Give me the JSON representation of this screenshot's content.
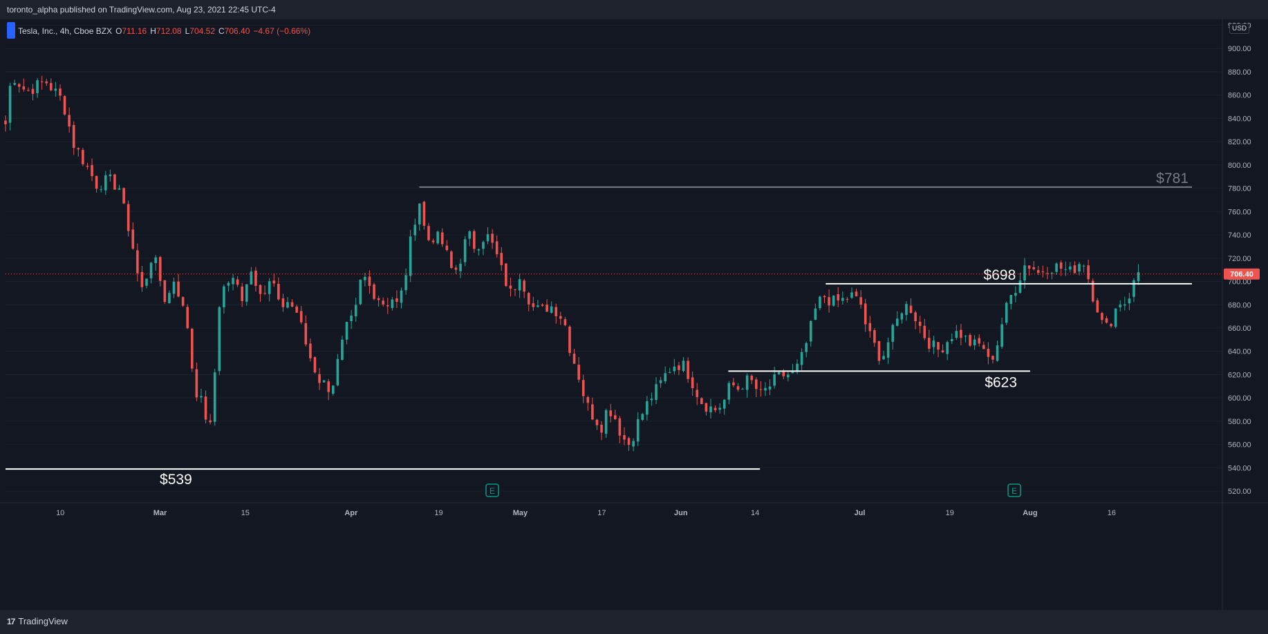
{
  "header": {
    "published_text": "toronto_alpha published on TradingView.com, Aug 23, 2021 22:45 UTC-4"
  },
  "legend": {
    "symbol": "Tesla, Inc., 4h, Cboe BZX",
    "open_label": "O",
    "open": "711.16",
    "high_label": "H",
    "high": "712.08",
    "low_label": "L",
    "low": "704.52",
    "close_label": "C",
    "close": "706.40",
    "change": "−4.67 (−0.66%)"
  },
  "price_axis": {
    "currency": "USD",
    "last_price": "706.40"
  },
  "footer": {
    "brand": "TradingView",
    "logo_glyph": "17"
  },
  "colors": {
    "up": "#26a69a",
    "down": "#ef5350",
    "background": "#131722",
    "grid": "#1e222d",
    "axis_text": "#b2b5be",
    "level_line": "#ffffff",
    "level_781": "#787b86"
  },
  "chart_data": {
    "type": "candlestick",
    "ylim": [
      510,
      925
    ],
    "y_ticks": [
      520,
      540,
      560,
      580,
      600,
      620,
      640,
      660,
      680,
      700,
      720,
      740,
      760,
      780,
      800,
      820,
      840,
      860,
      880,
      900,
      920
    ],
    "x_ticks": [
      "10",
      "Mar",
      "15",
      "Apr",
      "19",
      "May",
      "17",
      "Jun",
      "14",
      "Jul",
      "19",
      "Aug",
      "16"
    ],
    "x_tick_positions": [
      0.045,
      0.127,
      0.197,
      0.284,
      0.356,
      0.423,
      0.49,
      0.555,
      0.616,
      0.702,
      0.776,
      0.842,
      0.909
    ],
    "annotations": [
      {
        "label": "$781",
        "value": 781,
        "color": "#787b86",
        "from": 0.34,
        "to": 0.975
      },
      {
        "label": "$698",
        "value": 698,
        "color": "#ffffff",
        "from": 0.674,
        "to": 0.975
      },
      {
        "label": "$623",
        "value": 623,
        "color": "#ffffff",
        "from": 0.594,
        "to": 0.842
      },
      {
        "label": "$539",
        "value": 539,
        "color": "#ffffff",
        "from": 0.0,
        "to": 0.62
      }
    ],
    "earnings_markers": [
      {
        "label": "E",
        "x": 0.4
      },
      {
        "label": "E",
        "x": 0.829
      }
    ],
    "anchors": [
      [
        0.0,
        835
      ],
      [
        0.005,
        878
      ],
      [
        0.017,
        863
      ],
      [
        0.033,
        872
      ],
      [
        0.047,
        855
      ],
      [
        0.056,
        818
      ],
      [
        0.064,
        804
      ],
      [
        0.075,
        783
      ],
      [
        0.085,
        787
      ],
      [
        0.094,
        780
      ],
      [
        0.098,
        757
      ],
      [
        0.103,
        740
      ],
      [
        0.108,
        708
      ],
      [
        0.113,
        690
      ],
      [
        0.119,
        721
      ],
      [
        0.124,
        714
      ],
      [
        0.132,
        681
      ],
      [
        0.139,
        704
      ],
      [
        0.145,
        679
      ],
      [
        0.15,
        660
      ],
      [
        0.155,
        610
      ],
      [
        0.16,
        599
      ],
      [
        0.165,
        583
      ],
      [
        0.17,
        570
      ],
      [
        0.174,
        675
      ],
      [
        0.181,
        700
      ],
      [
        0.189,
        700
      ],
      [
        0.194,
        686
      ],
      [
        0.201,
        711
      ],
      [
        0.208,
        696
      ],
      [
        0.214,
        690
      ],
      [
        0.219,
        704
      ],
      [
        0.225,
        676
      ],
      [
        0.231,
        684
      ],
      [
        0.24,
        673
      ],
      [
        0.246,
        649
      ],
      [
        0.252,
        630
      ],
      [
        0.258,
        616
      ],
      [
        0.263,
        611
      ],
      [
        0.268,
        608
      ],
      [
        0.274,
        635
      ],
      [
        0.28,
        659
      ],
      [
        0.287,
        670
      ],
      [
        0.293,
        707
      ],
      [
        0.298,
        697
      ],
      [
        0.305,
        688
      ],
      [
        0.312,
        680
      ],
      [
        0.318,
        686
      ],
      [
        0.323,
        678
      ],
      [
        0.329,
        708
      ],
      [
        0.335,
        748
      ],
      [
        0.34,
        770
      ],
      [
        0.346,
        735
      ],
      [
        0.352,
        739
      ],
      [
        0.358,
        735
      ],
      [
        0.364,
        719
      ],
      [
        0.368,
        705
      ],
      [
        0.374,
        720
      ],
      [
        0.38,
        741
      ],
      [
        0.386,
        729
      ],
      [
        0.392,
        738
      ],
      [
        0.397,
        738
      ],
      [
        0.403,
        724
      ],
      [
        0.409,
        705
      ],
      [
        0.417,
        685
      ],
      [
        0.421,
        712
      ],
      [
        0.427,
        694
      ],
      [
        0.433,
        678
      ],
      [
        0.44,
        674
      ],
      [
        0.447,
        680
      ],
      [
        0.452,
        676
      ],
      [
        0.459,
        667
      ],
      [
        0.464,
        642
      ],
      [
        0.472,
        616
      ],
      [
        0.477,
        595
      ],
      [
        0.484,
        583
      ],
      [
        0.49,
        576
      ],
      [
        0.495,
        593
      ],
      [
        0.501,
        583
      ],
      [
        0.507,
        566
      ],
      [
        0.513,
        560
      ],
      [
        0.518,
        575
      ],
      [
        0.524,
        588
      ],
      [
        0.53,
        600
      ],
      [
        0.537,
        610
      ],
      [
        0.544,
        623
      ],
      [
        0.551,
        630
      ],
      [
        0.558,
        627
      ],
      [
        0.564,
        615
      ],
      [
        0.571,
        598
      ],
      [
        0.578,
        592
      ],
      [
        0.584,
        590
      ],
      [
        0.59,
        596
      ],
      [
        0.596,
        612
      ],
      [
        0.602,
        608
      ],
      [
        0.608,
        615
      ],
      [
        0.614,
        613
      ],
      [
        0.62,
        602
      ],
      [
        0.627,
        609
      ],
      [
        0.633,
        616
      ],
      [
        0.64,
        620
      ],
      [
        0.647,
        620
      ],
      [
        0.653,
        630
      ],
      [
        0.66,
        653
      ],
      [
        0.666,
        677
      ],
      [
        0.672,
        688
      ],
      [
        0.68,
        682
      ],
      [
        0.688,
        684
      ],
      [
        0.695,
        688
      ],
      [
        0.703,
        680
      ],
      [
        0.708,
        658
      ],
      [
        0.714,
        645
      ],
      [
        0.72,
        633
      ],
      [
        0.726,
        650
      ],
      [
        0.731,
        661
      ],
      [
        0.737,
        678
      ],
      [
        0.743,
        679
      ],
      [
        0.749,
        667
      ],
      [
        0.755,
        654
      ],
      [
        0.761,
        645
      ],
      [
        0.767,
        641
      ],
      [
        0.773,
        648
      ],
      [
        0.779,
        656
      ],
      [
        0.785,
        655
      ],
      [
        0.791,
        648
      ],
      [
        0.797,
        645
      ],
      [
        0.803,
        646
      ],
      [
        0.808,
        630
      ],
      [
        0.814,
        642
      ],
      [
        0.819,
        665
      ],
      [
        0.825,
        685
      ],
      [
        0.831,
        697
      ],
      [
        0.837,
        714
      ],
      [
        0.843,
        714
      ],
      [
        0.849,
        707
      ],
      [
        0.855,
        712
      ],
      [
        0.862,
        713
      ],
      [
        0.869,
        711
      ],
      [
        0.875,
        708
      ],
      [
        0.882,
        716
      ],
      [
        0.887,
        717
      ],
      [
        0.892,
        693
      ],
      [
        0.898,
        676
      ],
      [
        0.903,
        657
      ],
      [
        0.909,
        668
      ],
      [
        0.915,
        683
      ],
      [
        0.921,
        682
      ],
      [
        0.926,
        695
      ],
      [
        0.931,
        708
      ]
    ]
  }
}
